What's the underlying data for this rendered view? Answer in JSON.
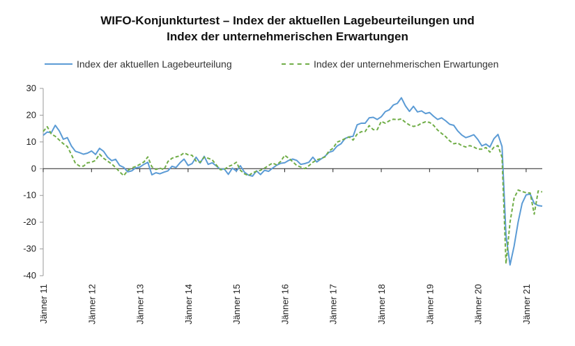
{
  "chart_data": {
    "type": "line",
    "title_line1": "WIFO-Konjunkturtest – Index der aktuellen Lagebeurteilungen und",
    "title_line2": "Index der unternehmerischen Erwartungen",
    "ylim": [
      -40,
      30
    ],
    "yticks": [
      "30",
      "20",
      "10",
      "0",
      "-10",
      "-20",
      "-30",
      "-40"
    ],
    "x_tick_labels": [
      "Jänner 11",
      "Jänner 12",
      "Jänner 13",
      "Jänner 14",
      "Jänner 15",
      "Jänner 16",
      "Jänner 17",
      "Jänner 18",
      "Jänner 19",
      "Jänner 20",
      "Jänner 21"
    ],
    "x_start": "2011-01",
    "x_step": "month",
    "grid": false,
    "legend_position": "top",
    "series": [
      {
        "name": "Index der aktuellen Lagebeurteilung",
        "color": "#5b9bd5",
        "style": "solid",
        "values": [
          12.5,
          13.7,
          13.4,
          16.2,
          14.1,
          11,
          11.6,
          8.5,
          6.5,
          6,
          5.4,
          5.8,
          6.6,
          5.3,
          7.6,
          6.5,
          4.3,
          3,
          3.5,
          1.2,
          0.5,
          -1.2,
          -0.8,
          0.3,
          0.6,
          1.6,
          2.4,
          -2.3,
          -1.5,
          -1.9,
          -1.3,
          -0.8,
          0.9,
          0.4,
          2.2,
          3.6,
          1.2,
          1.9,
          4.3,
          2.1,
          4.6,
          1.6,
          2.2,
          1,
          -0.2,
          -0.1,
          -2.1,
          0.2,
          -0.9,
          1.1,
          -1.3,
          -2.4,
          -2.8,
          -0.8,
          -2.2,
          -0.6,
          -1,
          0.2,
          1.3,
          2,
          2.2,
          3.1,
          3.6,
          3.1,
          1.6,
          1.9,
          2.4,
          4.3,
          2.5,
          3.6,
          4.6,
          6.1,
          6.6,
          8.4,
          9.3,
          11.3,
          11.9,
          12.1,
          16.4,
          17,
          17,
          19,
          19.2,
          18.4,
          19.4,
          21.3,
          22,
          23.8,
          24.4,
          26.5,
          23.5,
          21.4,
          23.3,
          21.2,
          21.6,
          20.6,
          21,
          19.6,
          18.4,
          19,
          17.9,
          16.6,
          16.2,
          14.1,
          12.6,
          11.6,
          12.1,
          12.7,
          10.9,
          8.5,
          9.2,
          8.1,
          11.2,
          12.8,
          8.3,
          -25,
          -36,
          -29,
          -20,
          -13,
          -9.8,
          -9.5,
          -13,
          -13.8,
          -14
        ]
      },
      {
        "name": "Index der unternehmerischen Erwartungen",
        "color": "#70ad47",
        "style": "dashed",
        "values": [
          13.9,
          15.7,
          13,
          12.1,
          10.7,
          9.3,
          8.3,
          5.3,
          2,
          1,
          0.9,
          2.2,
          2.4,
          3.1,
          5.4,
          3.9,
          2.8,
          1.8,
          0.4,
          -1.2,
          -2.6,
          -0.7,
          0.3,
          0.8,
          1.6,
          2.5,
          4.4,
          0.7,
          -0.3,
          0.2,
          -0.4,
          2.7,
          3.9,
          4.4,
          4.8,
          5.9,
          5.2,
          5,
          2.8,
          2.4,
          4.3,
          3.9,
          3.3,
          1.4,
          -0.4,
          -0.3,
          0.8,
          1.4,
          2.4,
          -0.6,
          -1.9,
          -2.6,
          -1.6,
          -1,
          -0.6,
          0.2,
          1.2,
          2.1,
          1.4,
          2.7,
          5,
          3.9,
          2.6,
          1.2,
          0.6,
          0,
          1.1,
          2.4,
          3.3,
          3.8,
          4.4,
          6.6,
          7.6,
          9.9,
          10.5,
          11.2,
          11.9,
          10.7,
          12.9,
          13.8,
          13.9,
          16.1,
          14.6,
          14.6,
          17.7,
          17,
          17.9,
          18.5,
          18.3,
          18.6,
          17.3,
          16.3,
          15.8,
          16.1,
          17,
          17.5,
          17.3,
          16.2,
          14.4,
          13.2,
          12,
          10.4,
          9.3,
          9.6,
          8.6,
          8.1,
          8.6,
          8.1,
          7.3,
          7.3,
          7.9,
          6.2,
          8,
          8.6,
          4.2,
          -35.5,
          -20,
          -11,
          -8,
          -8.5,
          -9,
          -9.1,
          -17,
          -8.3,
          -8.7
        ]
      }
    ]
  }
}
